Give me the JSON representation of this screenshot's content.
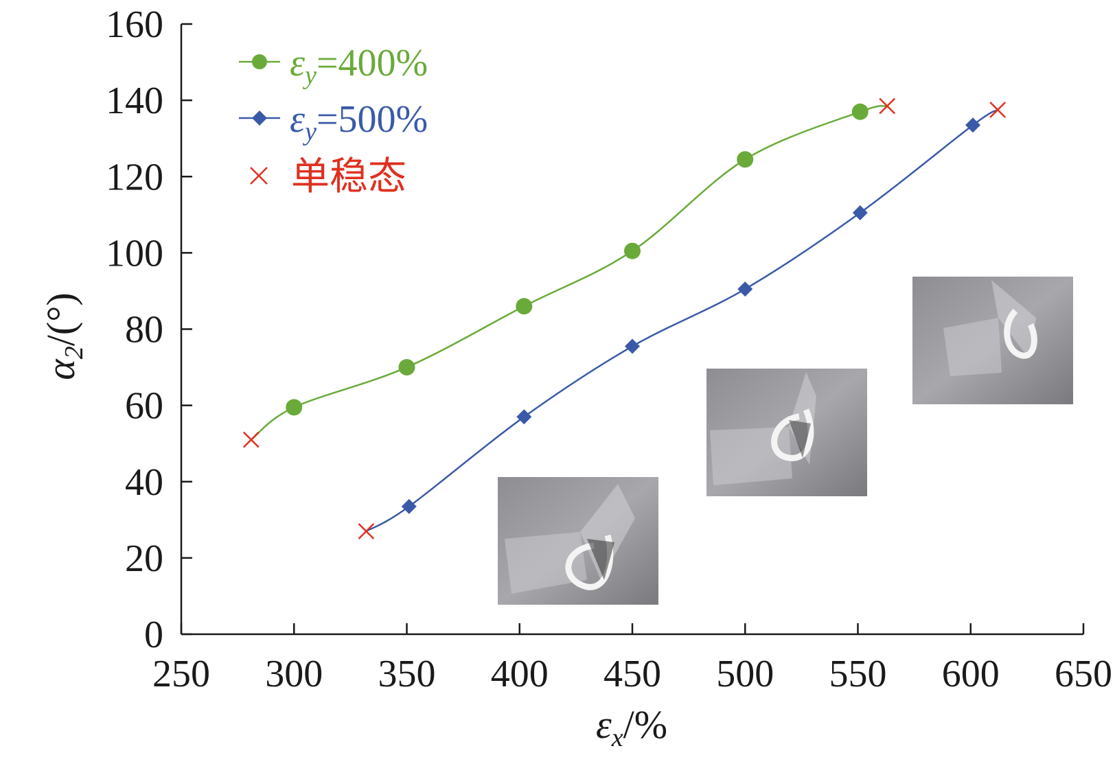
{
  "chart_data": {
    "type": "line",
    "xlabel": "εx/%",
    "ylabel": "α2/(°)",
    "xlim": [
      250,
      650
    ],
    "ylim": [
      0,
      160
    ],
    "x_ticks": [
      250,
      300,
      350,
      400,
      450,
      500,
      550,
      600,
      650
    ],
    "y_ticks": [
      0,
      20,
      40,
      60,
      80,
      100,
      120,
      140,
      160
    ],
    "grid": false,
    "legend_position": "top-left",
    "series": [
      {
        "name": "εy=400%",
        "color": "#6aaa3a",
        "marker": "circle",
        "x": [
          300,
          350,
          402,
          450,
          500,
          551
        ],
        "y": [
          59.5,
          70,
          86,
          100.5,
          124.5,
          137
        ],
        "endpoints": [
          [
            281,
            51
          ],
          [
            563,
            138.5
          ]
        ]
      },
      {
        "name": "εy=500%",
        "color": "#3a5aa8",
        "marker": "diamond",
        "x": [
          351,
          402,
          450,
          500,
          551,
          601
        ],
        "y": [
          33.5,
          57,
          75.5,
          90.5,
          110.5,
          133.5
        ],
        "endpoints": [
          [
            332,
            27
          ],
          [
            612,
            137.5
          ]
        ]
      }
    ],
    "unstable_marker": {
      "name": "单稳态",
      "color": "#e03020",
      "marker": "x",
      "points": [
        [
          281,
          51
        ],
        [
          563,
          138.5
        ],
        [
          332,
          27
        ],
        [
          612,
          137.5
        ]
      ]
    },
    "inset_photos": [
      {
        "name": "photo-fold-low",
        "description_icon": "folded-film-photo"
      },
      {
        "name": "photo-fold-mid",
        "description_icon": "folded-film-photo"
      },
      {
        "name": "photo-fold-high",
        "description_icon": "folded-film-photo"
      }
    ]
  }
}
